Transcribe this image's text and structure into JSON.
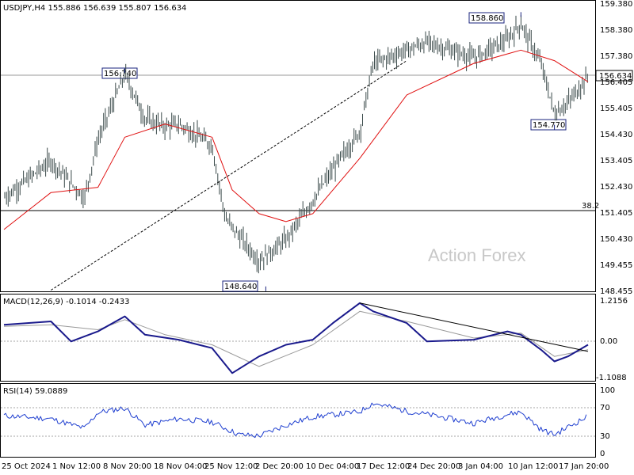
{
  "chart_data": [
    {
      "type": "candlestick",
      "header": "USDJPY,H4  155.886 156.639 155.807 156.634",
      "yticks": [
        "159.380",
        "158.380",
        "157.380",
        "156.405",
        "155.405",
        "154.430",
        "153.405",
        "152.430",
        "151.405",
        "150.430",
        "149.455",
        "148.455"
      ],
      "ylim": [
        148.455,
        159.38
      ],
      "xticks": [
        "25 Oct 2024",
        "1 Nov 12:00",
        "8 Nov 20:00",
        "18 Nov 04:00",
        "25 Nov 12:00",
        "2 Dec 20:00",
        "10 Dec 04:00",
        "17 Dec 12:00",
        "24 Dec 20:00",
        "3 Jan 04:00",
        "10 Jan 12:00",
        "17 Jan 20:00"
      ],
      "last_price": "156.634",
      "annotations": [
        {
          "label": "156.740",
          "date": "12 Nov 2024",
          "value": 156.74
        },
        {
          "label": "148.640",
          "date": "3 Dec 2024",
          "value": 148.64
        },
        {
          "label": "158.860",
          "date": "10 Jan 2025",
          "value": 158.86
        },
        {
          "label": "154.770",
          "date": "15 Jan 2025",
          "value": 154.77
        }
      ],
      "fib_level": {
        "label": "38.2",
        "value": 151.405
      },
      "series": [
        {
          "name": "price",
          "x": [
            "25 Oct",
            "1 Nov",
            "6 Nov",
            "8 Nov",
            "12 Nov",
            "15 Nov",
            "18 Nov",
            "20 Nov",
            "25 Nov",
            "27 Nov",
            "2 Dec",
            "4 Dec",
            "6 Dec",
            "10 Dec",
            "12 Dec",
            "15 Dec",
            "17 Dec",
            "19 Dec",
            "24 Dec",
            "27 Dec",
            "3 Jan",
            "8 Jan",
            "10 Jan",
            "13 Jan",
            "15 Jan",
            "17 Jan",
            "20 Jan"
          ],
          "values": [
            152.0,
            153.4,
            152.0,
            154.2,
            156.7,
            155.0,
            154.7,
            154.8,
            154.0,
            151.2,
            149.6,
            150.0,
            150.4,
            151.9,
            152.7,
            153.8,
            154.5,
            157.1,
            157.6,
            157.9,
            157.3,
            158.0,
            158.6,
            157.1,
            155.2,
            155.6,
            156.6
          ]
        },
        {
          "name": "moving average",
          "x": [
            "25 Oct",
            "1 Nov",
            "8 Nov",
            "12 Nov",
            "18 Nov",
            "25 Nov",
            "28 Nov",
            "2 Dec",
            "6 Dec",
            "10 Dec",
            "17 Dec",
            "24 Dec",
            "3 Jan",
            "10 Jan",
            "15 Jan",
            "20 Jan"
          ],
          "values": [
            150.8,
            152.2,
            152.4,
            154.3,
            154.8,
            154.3,
            152.3,
            151.4,
            151.1,
            151.4,
            153.5,
            155.9,
            157.1,
            157.6,
            157.2,
            156.4
          ]
        },
        {
          "name": "trendline",
          "x": [
            "1 Nov",
            "24 Dec"
          ],
          "values": [
            148.5,
            157.2
          ]
        }
      ]
    },
    {
      "type": "line",
      "header": "MACD(12,26,9) -0.1014 -0.2433",
      "yticks": [
        "1.2156",
        "0.00",
        "-1.1088"
      ],
      "ylim": [
        -1.1088,
        1.2156
      ],
      "zero_label": "0.00",
      "series": [
        {
          "name": "MACD",
          "x": [
            "25 Oct",
            "1 Nov",
            "4 Nov",
            "8 Nov",
            "12 Nov",
            "15 Nov",
            "20 Nov",
            "25 Nov",
            "28 Nov",
            "2 Dec",
            "6 Dec",
            "10 Dec",
            "13 Dec",
            "17 Dec",
            "19 Dec",
            "24 Dec",
            "27 Dec",
            "3 Jan",
            "8 Jan",
            "10 Jan",
            "13 Jan",
            "15 Jan",
            "17 Jan",
            "20 Jan"
          ],
          "values": [
            0.5,
            0.6,
            0.0,
            0.3,
            0.75,
            0.2,
            0.05,
            -0.2,
            -0.95,
            -0.45,
            -0.1,
            0.05,
            0.55,
            1.15,
            0.9,
            0.55,
            0.0,
            0.05,
            0.3,
            0.2,
            -0.25,
            -0.6,
            -0.45,
            -0.1
          ]
        },
        {
          "name": "Signal",
          "x": [
            "25 Oct",
            "1 Nov",
            "8 Nov",
            "12 Nov",
            "18 Nov",
            "25 Nov",
            "2 Dec",
            "10 Dec",
            "17 Dec",
            "24 Dec",
            "3 Jan",
            "10 Jan",
            "15 Jan",
            "20 Jan"
          ],
          "values": [
            0.45,
            0.5,
            0.35,
            0.65,
            0.2,
            -0.1,
            -0.75,
            -0.1,
            0.9,
            0.6,
            0.1,
            0.25,
            -0.45,
            -0.25
          ]
        },
        {
          "name": "trendline",
          "x": [
            "17 Dec",
            "20 Jan"
          ],
          "values": [
            1.15,
            -0.3
          ]
        }
      ]
    },
    {
      "type": "line",
      "header": "RSI(14) 59.0889",
      "yticks": [
        "100",
        "70",
        "30",
        "0"
      ],
      "ylim": [
        0,
        100
      ],
      "levels": [
        70,
        30
      ],
      "series": [
        {
          "name": "RSI",
          "x": [
            "25 Oct",
            "1 Nov",
            "6 Nov",
            "8 Nov",
            "12 Nov",
            "15 Nov",
            "20 Nov",
            "25 Nov",
            "29 Nov",
            "2 Dec",
            "6 Dec",
            "10 Dec",
            "17 Dec",
            "19 Dec",
            "24 Dec",
            "27 Dec",
            "3 Jan",
            "8 Jan",
            "10 Jan",
            "13 Jan",
            "15 Jan",
            "17 Jan",
            "20 Jan"
          ],
          "values": [
            60,
            55,
            40,
            65,
            72,
            45,
            55,
            50,
            30,
            28,
            45,
            58,
            66,
            80,
            67,
            62,
            48,
            62,
            66,
            38,
            30,
            42,
            59
          ]
        }
      ]
    }
  ],
  "watermark": "Action Forex"
}
